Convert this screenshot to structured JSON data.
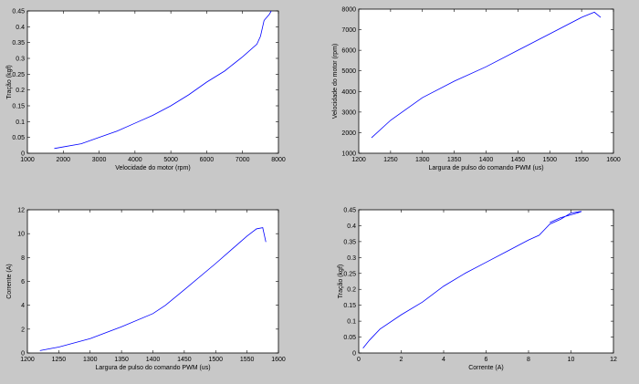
{
  "chart_data": [
    {
      "type": "line",
      "xlabel": "Velocidade do motor (rpm)",
      "ylabel": "Tração (kgf)",
      "color": "#0000ff",
      "x": [
        1750,
        2000,
        2500,
        3000,
        3500,
        4000,
        4500,
        5000,
        5500,
        6000,
        6500,
        7000,
        7400,
        7500,
        7600,
        7750,
        7800
      ],
      "values": [
        0.015,
        0.02,
        0.03,
        0.05,
        0.07,
        0.095,
        0.12,
        0.15,
        0.185,
        0.225,
        0.26,
        0.305,
        0.345,
        0.37,
        0.42,
        0.44,
        0.45
      ],
      "xlim": [
        1000,
        8000
      ],
      "xticks": [
        1000,
        2000,
        3000,
        4000,
        5000,
        6000,
        7000,
        8000
      ],
      "ylim": [
        0,
        0.45
      ],
      "yticks": [
        0,
        0.05,
        0.1,
        0.15,
        0.2,
        0.25,
        0.3,
        0.35,
        0.4,
        0.45
      ]
    },
    {
      "type": "line",
      "xlabel": "Largura de pulso do comando PWM (us)",
      "ylabel": "Velocidade do motor (rpm)",
      "color": "#0000ff",
      "x": [
        1220,
        1250,
        1300,
        1350,
        1400,
        1450,
        1500,
        1550,
        1570,
        1580
      ],
      "values": [
        1750,
        2600,
        3700,
        4500,
        5200,
        6000,
        6800,
        7600,
        7850,
        7600
      ],
      "xlim": [
        1200,
        1600
      ],
      "xticks": [
        1200,
        1250,
        1300,
        1350,
        1400,
        1450,
        1500,
        1550,
        1600
      ],
      "ylim": [
        1000,
        8000
      ],
      "yticks": [
        1000,
        2000,
        3000,
        4000,
        5000,
        6000,
        7000,
        8000
      ]
    },
    {
      "type": "line",
      "xlabel": "Largura de pulso do comando PWM (us)",
      "ylabel": "Corrente (A)",
      "color": "#0000ff",
      "x": [
        1220,
        1250,
        1300,
        1350,
        1400,
        1420,
        1450,
        1500,
        1550,
        1565,
        1575,
        1580
      ],
      "values": [
        0.2,
        0.5,
        1.2,
        2.2,
        3.3,
        4,
        5.3,
        7.5,
        9.8,
        10.4,
        10.5,
        9.3
      ],
      "xlim": [
        1200,
        1600
      ],
      "xticks": [
        1200,
        1250,
        1300,
        1350,
        1400,
        1450,
        1500,
        1550,
        1600
      ],
      "ylim": [
        0,
        12
      ],
      "yticks": [
        0,
        2,
        4,
        6,
        8,
        10,
        12
      ]
    },
    {
      "type": "line",
      "xlabel": "Corrente (A)",
      "ylabel": "Tração (kgf)",
      "color": "#0000ff",
      "x": [
        0.2,
        0.5,
        1,
        2,
        3,
        4,
        5,
        6,
        7,
        8,
        8.5,
        9,
        9.5,
        10,
        10.5,
        10.3,
        9.5,
        9
      ],
      "values": [
        0.015,
        0.04,
        0.075,
        0.12,
        0.16,
        0.21,
        0.25,
        0.285,
        0.32,
        0.355,
        0.37,
        0.405,
        0.42,
        0.44,
        0.445,
        0.44,
        0.425,
        0.41
      ],
      "xlim": [
        0,
        12
      ],
      "xticks": [
        0,
        2,
        4,
        6,
        8,
        10,
        12
      ],
      "ylim": [
        0,
        0.45
      ],
      "yticks": [
        0,
        0.05,
        0.1,
        0.15,
        0.2,
        0.25,
        0.3,
        0.35,
        0.4,
        0.45
      ]
    }
  ]
}
